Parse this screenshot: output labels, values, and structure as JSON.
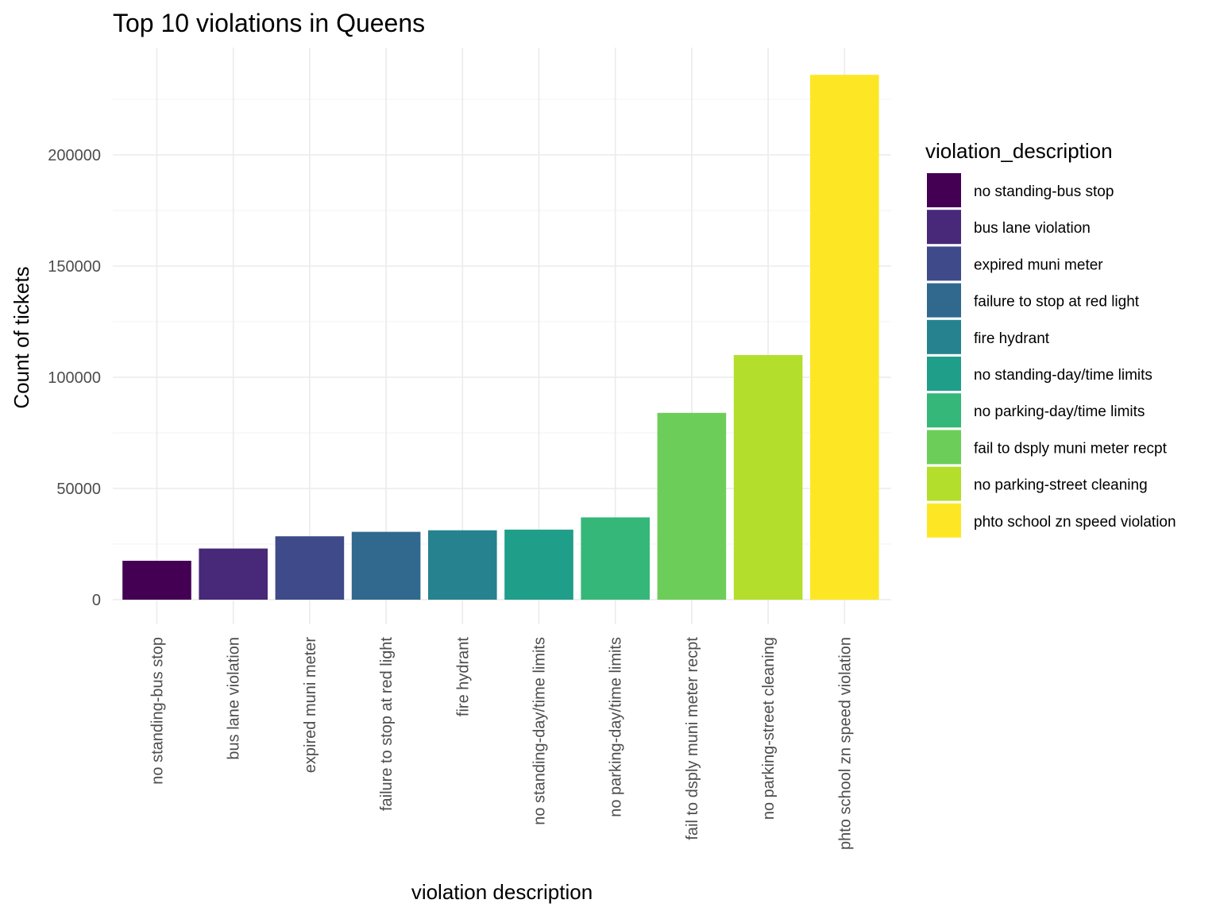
{
  "chart_data": {
    "type": "bar",
    "title": "Top 10 violations in Queens",
    "xlabel": "violation description",
    "ylabel": "Count of tickets",
    "categories": [
      "no standing-bus stop",
      "bus lane violation",
      "expired muni meter",
      "failure to stop at red light",
      "fire hydrant",
      "no standing-day/time limits",
      "no parking-day/time limits",
      "fail to dsply muni meter recpt",
      "no parking-street cleaning",
      "phto school zn speed violation"
    ],
    "values": [
      17500,
      23000,
      28500,
      30500,
      31200,
      31500,
      37000,
      84000,
      110000,
      236000
    ],
    "colors": [
      "#440154",
      "#482878",
      "#3E4A89",
      "#31688E",
      "#26828E",
      "#1F9E89",
      "#35B779",
      "#6DCD59",
      "#B4DE2C",
      "#FDE725"
    ],
    "ylim": [
      0,
      236000
    ],
    "yticks": [
      0,
      50000,
      100000,
      150000,
      200000
    ],
    "ytick_labels": [
      "0",
      "50000",
      "100000",
      "150000",
      "200000"
    ],
    "grid": true,
    "legend": {
      "title": "violation_description",
      "placement": "right"
    }
  }
}
